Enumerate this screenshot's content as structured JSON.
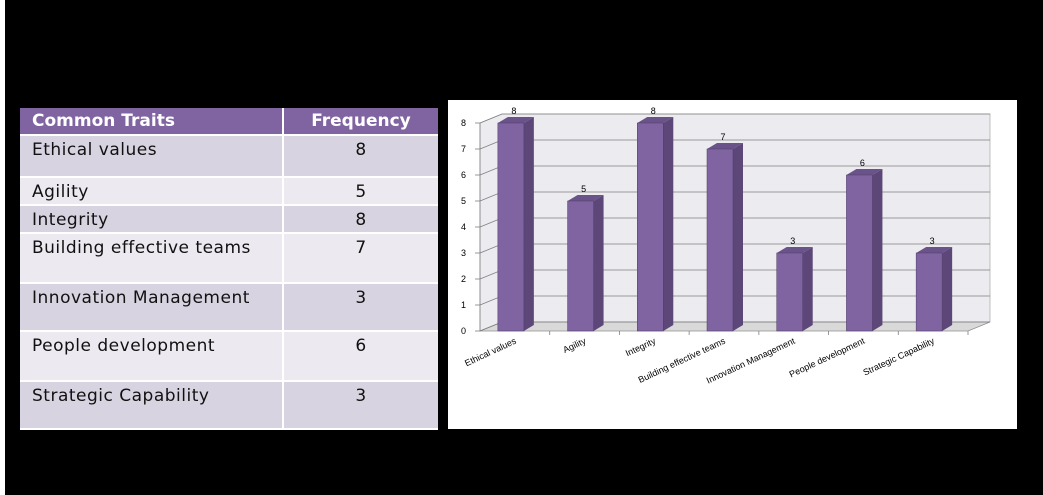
{
  "table": {
    "headers": [
      "Common Traits",
      "Frequency"
    ],
    "rows": [
      {
        "trait": "Ethical values",
        "frequency": "8"
      },
      {
        "trait": "Agility",
        "frequency": "5"
      },
      {
        "trait": "Integrity",
        "frequency": "8"
      },
      {
        "trait": "Building effective teams",
        "frequency": "7"
      },
      {
        "trait": "Innovation Management",
        "frequency": "3"
      },
      {
        "trait": "People development",
        "frequency": "6"
      },
      {
        "trait": "Strategic Capability",
        "frequency": "3"
      }
    ]
  },
  "colors": {
    "header": "#8064a2",
    "row_odd": "#d8d3e0",
    "row_even": "#ece9f0",
    "bar_front": "#8064a2",
    "bar_side": "#5c4778",
    "bar_top": "#6a528a",
    "plot_back": "#ecebef"
  },
  "chart_data": {
    "type": "bar",
    "style": "3d-column",
    "categories": [
      "Ethical values",
      "Agility",
      "Integrity",
      "Building effective teams",
      "Innovation Management",
      "People development",
      "Strategic Capability"
    ],
    "values": [
      8,
      5,
      8,
      7,
      3,
      6,
      3
    ],
    "data_labels": [
      "8",
      "5",
      "8",
      "7",
      "3",
      "6",
      "3"
    ],
    "title": "",
    "xlabel": "",
    "ylabel": "",
    "ylim": [
      0,
      8
    ],
    "yticks": [
      "0",
      "1",
      "2",
      "3",
      "4",
      "5",
      "6",
      "7",
      "8"
    ],
    "grid": true,
    "legend": "none"
  }
}
